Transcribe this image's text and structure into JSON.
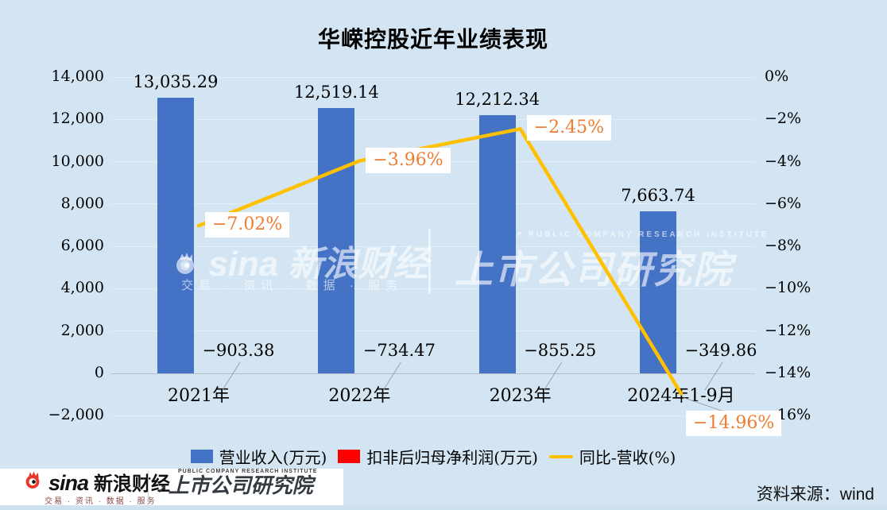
{
  "title": "华嵘控股近年业绩表现",
  "chart_data": {
    "type": "bar",
    "subtype": "bar-line-combo",
    "categories": [
      "2021年",
      "2022年",
      "2023年",
      "2024年1-9月"
    ],
    "series": [
      {
        "name": "营业收入(万元)",
        "type": "bar",
        "axis": "left",
        "color": "#4472c4",
        "values": [
          13035.29,
          12519.14,
          12212.34,
          7663.74
        ],
        "labels": [
          "13,035.29",
          "12,519.14",
          "12,212.34",
          "7,663.74"
        ]
      },
      {
        "name": "扣非后归母净利润(万元)",
        "type": "bar",
        "axis": "left",
        "color": "#ff0000",
        "values": [
          -903.38,
          -734.47,
          -855.25,
          -349.86
        ],
        "labels": [
          "−903.38",
          "−734.47",
          "−855.25",
          "−349.86"
        ]
      },
      {
        "name": "同比-营收(%)",
        "type": "line",
        "axis": "right",
        "color": "#ffc000",
        "values": [
          -7.02,
          -3.96,
          -2.45,
          -14.96
        ],
        "labels": [
          "−7.02%",
          "−3.96%",
          "−2.45%",
          "−14.96%"
        ]
      }
    ],
    "left_axis": {
      "min": -2000,
      "max": 14000,
      "step": 2000,
      "ticks": [
        "14,000",
        "12,000",
        "10,000",
        "8,000",
        "6,000",
        "4,000",
        "2,000",
        "0",
        "−2,000"
      ]
    },
    "right_axis": {
      "min": -16,
      "max": 0,
      "step": 2,
      "ticks": [
        "0%",
        "−2%",
        "−4%",
        "−6%",
        "−8%",
        "−10%",
        "−12%",
        "−14%",
        "−16%"
      ]
    },
    "grid": true,
    "legend_position": "bottom"
  },
  "watermark": {
    "sina_word": "sina",
    "sina_cn": "新浪财经",
    "sina_tagline": "交易 · 资讯 · 数据 · 服务",
    "institute_en": "PUBLIC COMPANY RESEARCH INSTITUTE",
    "institute_cn": "上市公司研究院"
  },
  "footer": {
    "sina_word": "sina",
    "sina_name": "新浪财经",
    "sina_tagline": "交易 · 资讯 · 数据 · 服务",
    "institute_en": "PUBLIC COMPANY RESEARCH INSTITUTE",
    "institute_cn": "上市公司研究院",
    "source": "资料来源：wind"
  },
  "colors": {
    "background": "#d3e5f2",
    "bar_revenue": "#4472c4",
    "bar_profit": "#ff0000",
    "line_yoy": "#ffc000",
    "pct_label_text": "#ed7d31",
    "footer_background": "#ffffff"
  }
}
